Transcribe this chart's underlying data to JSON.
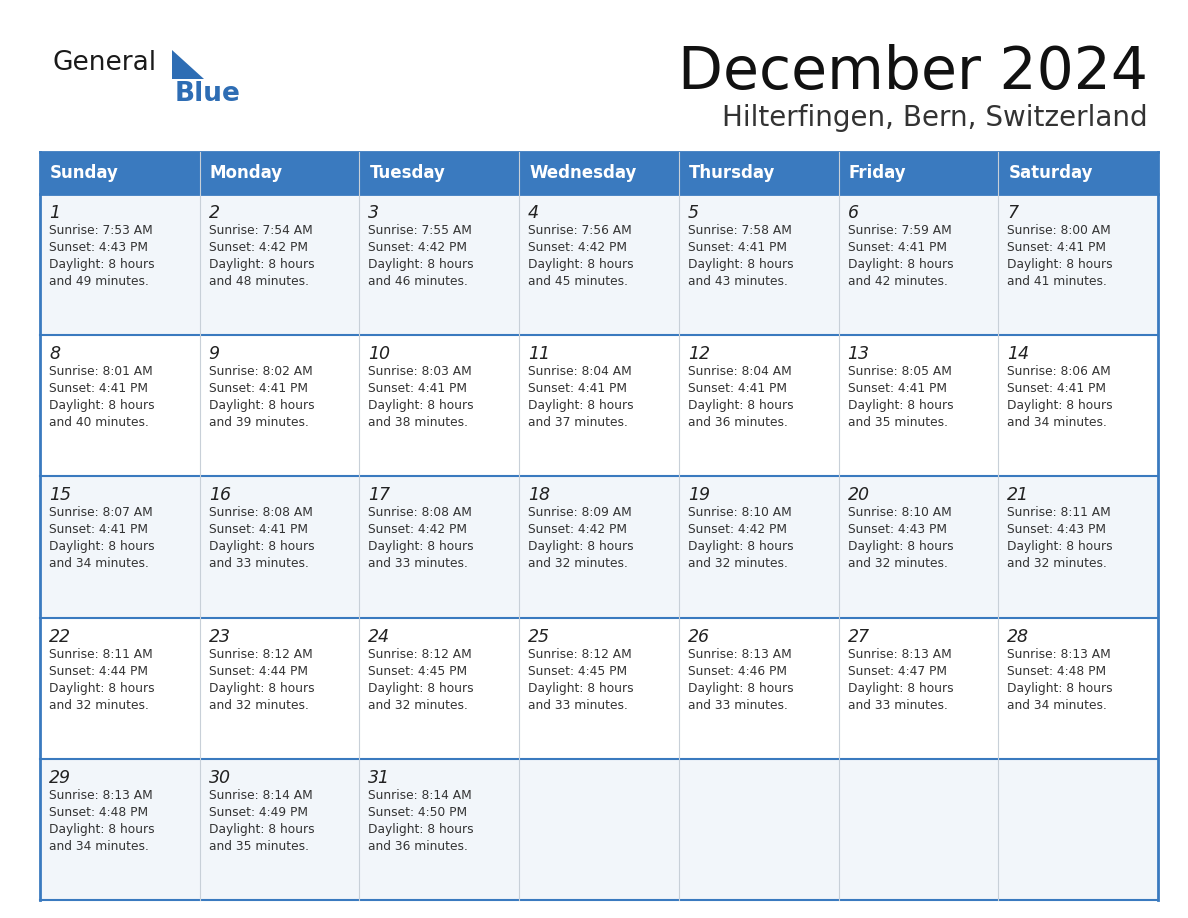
{
  "title": "December 2024",
  "subtitle": "Hilterfingen, Bern, Switzerland",
  "header_color": "#3a7abf",
  "header_text_color": "#ffffff",
  "cell_bg_even": "#f2f6fa",
  "cell_bg_odd": "#ffffff",
  "border_color": "#3a7abf",
  "inner_border_color": "#c8d0d8",
  "day_names": [
    "Sunday",
    "Monday",
    "Tuesday",
    "Wednesday",
    "Thursday",
    "Friday",
    "Saturday"
  ],
  "days": [
    {
      "day": 1,
      "col": 0,
      "row": 0,
      "sunrise": "7:53 AM",
      "sunset": "4:43 PM",
      "daylight": "8 hours and 49 minutes."
    },
    {
      "day": 2,
      "col": 1,
      "row": 0,
      "sunrise": "7:54 AM",
      "sunset": "4:42 PM",
      "daylight": "8 hours and 48 minutes."
    },
    {
      "day": 3,
      "col": 2,
      "row": 0,
      "sunrise": "7:55 AM",
      "sunset": "4:42 PM",
      "daylight": "8 hours and 46 minutes."
    },
    {
      "day": 4,
      "col": 3,
      "row": 0,
      "sunrise": "7:56 AM",
      "sunset": "4:42 PM",
      "daylight": "8 hours and 45 minutes."
    },
    {
      "day": 5,
      "col": 4,
      "row": 0,
      "sunrise": "7:58 AM",
      "sunset": "4:41 PM",
      "daylight": "8 hours and 43 minutes."
    },
    {
      "day": 6,
      "col": 5,
      "row": 0,
      "sunrise": "7:59 AM",
      "sunset": "4:41 PM",
      "daylight": "8 hours and 42 minutes."
    },
    {
      "day": 7,
      "col": 6,
      "row": 0,
      "sunrise": "8:00 AM",
      "sunset": "4:41 PM",
      "daylight": "8 hours and 41 minutes."
    },
    {
      "day": 8,
      "col": 0,
      "row": 1,
      "sunrise": "8:01 AM",
      "sunset": "4:41 PM",
      "daylight": "8 hours and 40 minutes."
    },
    {
      "day": 9,
      "col": 1,
      "row": 1,
      "sunrise": "8:02 AM",
      "sunset": "4:41 PM",
      "daylight": "8 hours and 39 minutes."
    },
    {
      "day": 10,
      "col": 2,
      "row": 1,
      "sunrise": "8:03 AM",
      "sunset": "4:41 PM",
      "daylight": "8 hours and 38 minutes."
    },
    {
      "day": 11,
      "col": 3,
      "row": 1,
      "sunrise": "8:04 AM",
      "sunset": "4:41 PM",
      "daylight": "8 hours and 37 minutes."
    },
    {
      "day": 12,
      "col": 4,
      "row": 1,
      "sunrise": "8:04 AM",
      "sunset": "4:41 PM",
      "daylight": "8 hours and 36 minutes."
    },
    {
      "day": 13,
      "col": 5,
      "row": 1,
      "sunrise": "8:05 AM",
      "sunset": "4:41 PM",
      "daylight": "8 hours and 35 minutes."
    },
    {
      "day": 14,
      "col": 6,
      "row": 1,
      "sunrise": "8:06 AM",
      "sunset": "4:41 PM",
      "daylight": "8 hours and 34 minutes."
    },
    {
      "day": 15,
      "col": 0,
      "row": 2,
      "sunrise": "8:07 AM",
      "sunset": "4:41 PM",
      "daylight": "8 hours and 34 minutes."
    },
    {
      "day": 16,
      "col": 1,
      "row": 2,
      "sunrise": "8:08 AM",
      "sunset": "4:41 PM",
      "daylight": "8 hours and 33 minutes."
    },
    {
      "day": 17,
      "col": 2,
      "row": 2,
      "sunrise": "8:08 AM",
      "sunset": "4:42 PM",
      "daylight": "8 hours and 33 minutes."
    },
    {
      "day": 18,
      "col": 3,
      "row": 2,
      "sunrise": "8:09 AM",
      "sunset": "4:42 PM",
      "daylight": "8 hours and 32 minutes."
    },
    {
      "day": 19,
      "col": 4,
      "row": 2,
      "sunrise": "8:10 AM",
      "sunset": "4:42 PM",
      "daylight": "8 hours and 32 minutes."
    },
    {
      "day": 20,
      "col": 5,
      "row": 2,
      "sunrise": "8:10 AM",
      "sunset": "4:43 PM",
      "daylight": "8 hours and 32 minutes."
    },
    {
      "day": 21,
      "col": 6,
      "row": 2,
      "sunrise": "8:11 AM",
      "sunset": "4:43 PM",
      "daylight": "8 hours and 32 minutes."
    },
    {
      "day": 22,
      "col": 0,
      "row": 3,
      "sunrise": "8:11 AM",
      "sunset": "4:44 PM",
      "daylight": "8 hours and 32 minutes."
    },
    {
      "day": 23,
      "col": 1,
      "row": 3,
      "sunrise": "8:12 AM",
      "sunset": "4:44 PM",
      "daylight": "8 hours and 32 minutes."
    },
    {
      "day": 24,
      "col": 2,
      "row": 3,
      "sunrise": "8:12 AM",
      "sunset": "4:45 PM",
      "daylight": "8 hours and 32 minutes."
    },
    {
      "day": 25,
      "col": 3,
      "row": 3,
      "sunrise": "8:12 AM",
      "sunset": "4:45 PM",
      "daylight": "8 hours and 33 minutes."
    },
    {
      "day": 26,
      "col": 4,
      "row": 3,
      "sunrise": "8:13 AM",
      "sunset": "4:46 PM",
      "daylight": "8 hours and 33 minutes."
    },
    {
      "day": 27,
      "col": 5,
      "row": 3,
      "sunrise": "8:13 AM",
      "sunset": "4:47 PM",
      "daylight": "8 hours and 33 minutes."
    },
    {
      "day": 28,
      "col": 6,
      "row": 3,
      "sunrise": "8:13 AM",
      "sunset": "4:48 PM",
      "daylight": "8 hours and 34 minutes."
    },
    {
      "day": 29,
      "col": 0,
      "row": 4,
      "sunrise": "8:13 AM",
      "sunset": "4:48 PM",
      "daylight": "8 hours and 34 minutes."
    },
    {
      "day": 30,
      "col": 1,
      "row": 4,
      "sunrise": "8:14 AM",
      "sunset": "4:49 PM",
      "daylight": "8 hours and 35 minutes."
    },
    {
      "day": 31,
      "col": 2,
      "row": 4,
      "sunrise": "8:14 AM",
      "sunset": "4:50 PM",
      "daylight": "8 hours and 36 minutes."
    }
  ],
  "logo_text1": "General",
  "logo_text2": "Blue",
  "logo_color1": "#1a1a1a",
  "logo_color2": "#2e6db4",
  "logo_triangle_color": "#2e6db4",
  "title_color": "#111111",
  "subtitle_color": "#333333"
}
